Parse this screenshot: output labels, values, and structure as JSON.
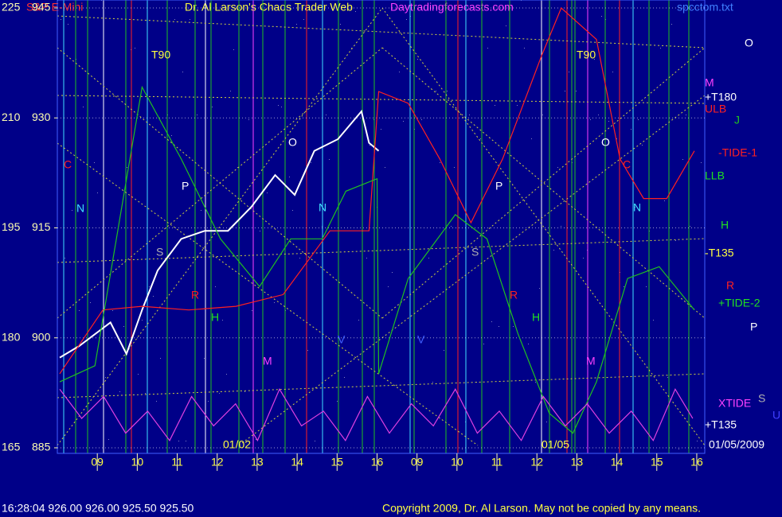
{
  "chart_data": {
    "type": "line",
    "symbol": "S&P E-Mini",
    "title": "Dr. Al Larson's Chaos Trader Web",
    "site": "Daytradingforecasts.com",
    "file": "spcctom.txt",
    "status": "16:28:04  926.00 926.00 925.50 925.50",
    "copyright": "Copyright 2009, Dr. Al Larson. May not be copied by any means.",
    "ylim": [
      885,
      945
    ],
    "yticks": [
      885,
      900,
      915,
      930,
      945
    ],
    "y2lim": [
      165,
      225
    ],
    "y2ticks": [
      165,
      180,
      195,
      210,
      225
    ],
    "xlim": [
      0,
      16.2
    ],
    "xticks": [
      {
        "value": 1,
        "label": "09"
      },
      {
        "value": 2,
        "label": "10"
      },
      {
        "value": 3,
        "label": "11"
      },
      {
        "value": 4,
        "label": "12"
      },
      {
        "value": 5,
        "label": "13"
      },
      {
        "value": 6,
        "label": "14"
      },
      {
        "value": 7,
        "label": "15"
      },
      {
        "value": 8,
        "label": "16"
      },
      {
        "value": 9,
        "label": "09"
      },
      {
        "value": 10,
        "label": "10"
      },
      {
        "value": 11,
        "label": "11"
      },
      {
        "value": 12,
        "label": "12"
      },
      {
        "value": 13,
        "label": "13"
      },
      {
        "value": 14,
        "label": "14"
      },
      {
        "value": 15,
        "label": "15"
      },
      {
        "value": 16,
        "label": "16"
      }
    ],
    "grid": true,
    "series": [
      {
        "color": "#ffffff",
        "x": [
          0.06,
          0.55,
          1.33,
          1.73,
          2.12,
          2.51,
          3.1,
          3.69,
          4.27,
          4.86,
          5.45,
          5.94,
          6.43,
          7.02,
          7.61,
          7.8,
          8.04
        ],
        "values": [
          897.3,
          898.9,
          902.1,
          897.8,
          903.8,
          909.2,
          913.5,
          914.6,
          914.6,
          917.9,
          922.2,
          919.5,
          925.5,
          927.1,
          930.9,
          926.6,
          925.5
        ]
      },
      {
        "name": "-TIDE-1",
        "color": "#ff2020",
        "x": [
          0.06,
          1.14,
          2.12,
          3.29,
          4.47,
          5.65,
          6.82,
          7.8,
          8.04,
          8.78,
          9.57,
          10.35,
          11.14,
          12.12,
          12.61,
          13.49,
          14.08,
          14.67,
          15.25,
          15.94
        ],
        "values": [
          895.1,
          903.8,
          904.3,
          903.8,
          904.3,
          905.9,
          914.6,
          914.6,
          933.6,
          932.0,
          924.4,
          915.7,
          924.4,
          938.5,
          945.0,
          940.7,
          924.4,
          919.0,
          919.0,
          925.5
        ]
      },
      {
        "name": "+TIDE-2",
        "color": "#20c020",
        "x": [
          0.06,
          0.94,
          2.12,
          3.1,
          4.08,
          5.06,
          5.84,
          6.63,
          7.22,
          8.0,
          8.04,
          8.78,
          9.96,
          10.75,
          11.53,
          12.31,
          12.9,
          13.49,
          14.27,
          15.06,
          15.94
        ],
        "values": [
          894.0,
          896.2,
          934.2,
          924.4,
          913.5,
          907.0,
          913.5,
          913.5,
          920.0,
          921.7,
          895.1,
          908.1,
          916.8,
          913.5,
          900.5,
          889.7,
          887.0,
          894.0,
          908.1,
          909.7,
          903.8
        ]
      },
      {
        "name": "XTIDE",
        "color": "#e040e0",
        "x": [
          0.06,
          0.61,
          1.16,
          1.71,
          2.26,
          2.81,
          3.36,
          3.91,
          4.46,
          5.01,
          5.56,
          6.11,
          6.66,
          7.21,
          7.76,
          8.31,
          8.86,
          9.41,
          9.96,
          10.51,
          11.06,
          11.61,
          12.16,
          12.71,
          13.26,
          13.81,
          14.36,
          14.91,
          15.46,
          15.9
        ],
        "values": [
          893,
          889,
          892,
          887,
          890,
          886,
          892,
          888,
          891,
          886,
          893,
          888,
          890,
          886,
          892,
          887,
          891,
          888,
          893,
          887,
          890,
          886,
          892,
          888,
          891,
          887,
          890,
          886,
          893,
          889
        ]
      }
    ],
    "annotations": [
      {
        "text": "T90",
        "color": "#ffff40"
      },
      {
        "text": "T90",
        "color": "#ffff40"
      },
      {
        "text": "O",
        "color": "#ffffff"
      },
      {
        "text": "M",
        "color": "#ff40ff"
      },
      {
        "text": "+T180",
        "color": "#ffffff"
      },
      {
        "text": "ULB",
        "color": "#ff2020"
      },
      {
        "text": "J",
        "color": "#20c020"
      },
      {
        "text": "-TIDE-1",
        "color": "#ff2020"
      },
      {
        "text": "LLB",
        "color": "#20e020"
      },
      {
        "text": "H",
        "color": "#20e020"
      },
      {
        "text": "-T135",
        "color": "#ffff40"
      },
      {
        "text": "R",
        "color": "#ff2020"
      },
      {
        "text": "+TIDE-2",
        "color": "#20e020"
      },
      {
        "text": "P",
        "color": "#ffffff"
      },
      {
        "text": "XTIDE",
        "color": "#ff40ff"
      },
      {
        "text": "S",
        "color": "#b0b0b0"
      },
      {
        "text": "U",
        "color": "#4040ff"
      },
      {
        "text": "+T135",
        "color": "#ffffff"
      },
      {
        "text": "C",
        "color": "#ff2020"
      },
      {
        "text": "N",
        "color": "#40e0ff"
      },
      {
        "text": "P",
        "color": "#ffffff"
      },
      {
        "text": "O",
        "color": "#ffffff"
      },
      {
        "text": "N",
        "color": "#40e0ff"
      },
      {
        "text": "S",
        "color": "#b0b0b0"
      },
      {
        "text": "R",
        "color": "#ff2020"
      },
      {
        "text": "H",
        "color": "#20e020"
      },
      {
        "text": "M",
        "color": "#ff40ff"
      },
      {
        "text": "V",
        "color": "#4060ff"
      },
      {
        "text": "P",
        "color": "#ffffff"
      },
      {
        "text": "O",
        "color": "#ffffff"
      },
      {
        "text": "C",
        "color": "#ff2020"
      },
      {
        "text": "N",
        "color": "#40e0ff"
      },
      {
        "text": "S",
        "color": "#b0b0b0"
      },
      {
        "text": "R",
        "color": "#ff2020"
      },
      {
        "text": "H",
        "color": "#20e020"
      },
      {
        "text": "M",
        "color": "#ff40ff"
      },
      {
        "text": "V",
        "color": "#4060ff"
      },
      {
        "text": "01/02",
        "color": "#ffff40"
      },
      {
        "text": "01/05",
        "color": "#ffff40"
      },
      {
        "text": "01/05/2009",
        "color": "#ffffff"
      }
    ]
  }
}
